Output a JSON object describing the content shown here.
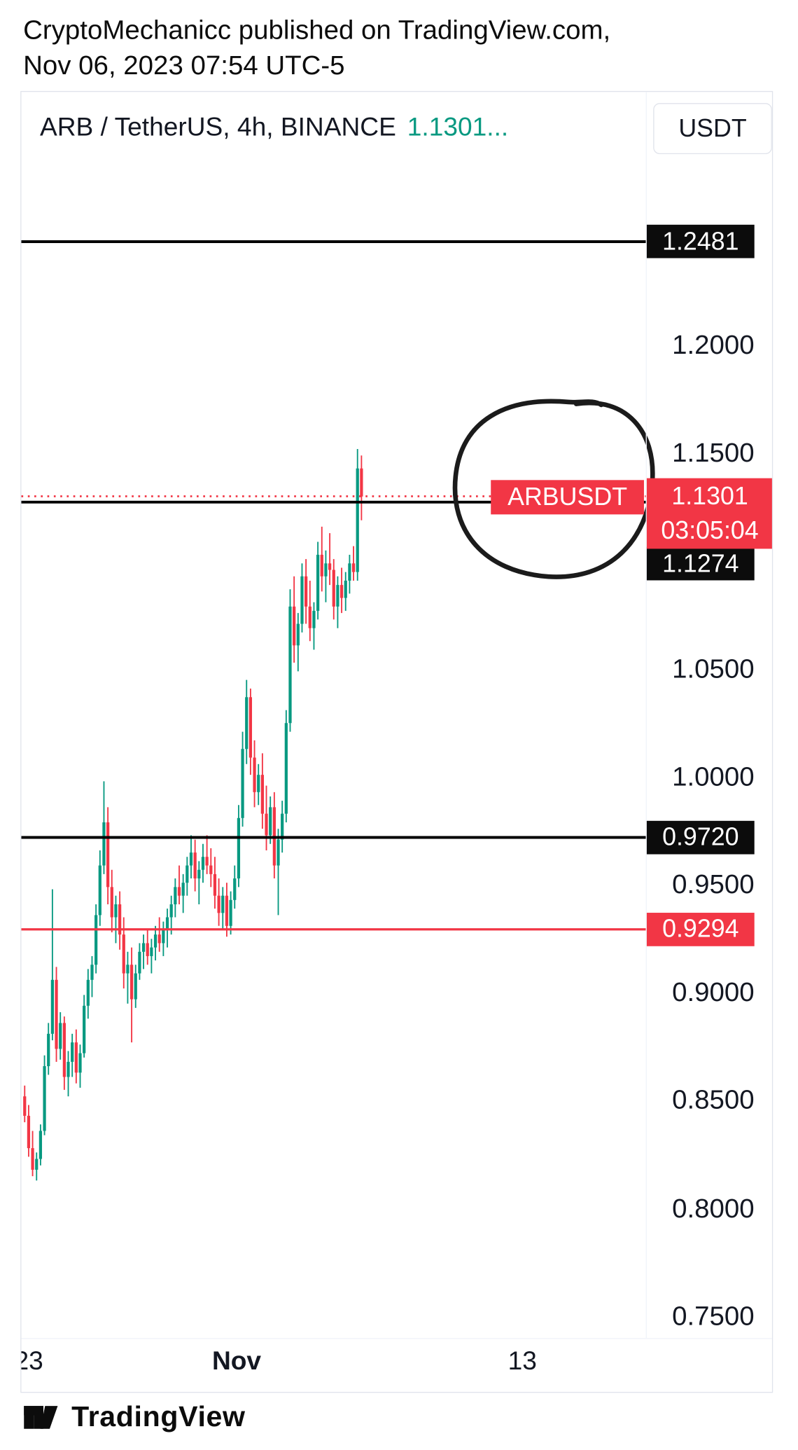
{
  "attribution": {
    "line1": "CryptoMechanicc published on TradingView.com,",
    "line2": "Nov 06, 2023 07:54 UTC-5"
  },
  "chart_header": {
    "symbol_title": "ARB / TetherUS, 4h, BINANCE",
    "price_preview": "1.1301...",
    "currency_button": "USDT"
  },
  "price_scale": {
    "labels": [
      {
        "text": "1.2000",
        "price": 1.2
      },
      {
        "text": "1.1500",
        "price": 1.15
      },
      {
        "text": "1.0500",
        "price": 1.05
      },
      {
        "text": "1.0000",
        "price": 1.0
      },
      {
        "text": "0.9500",
        "price": 0.95
      },
      {
        "text": "0.9000",
        "price": 0.9
      },
      {
        "text": "0.8500",
        "price": 0.85
      },
      {
        "text": "0.8000",
        "price": 0.8
      },
      {
        "text": "0.7500",
        "price": 0.75
      }
    ],
    "badges": [
      {
        "text": "1.2481",
        "price": 1.2481,
        "type": "black"
      },
      {
        "text": "1.1274",
        "price": 1.1274,
        "type": "black"
      },
      {
        "text": "0.9720",
        "price": 0.972,
        "type": "black"
      },
      {
        "text": "0.9294",
        "price": 0.9294,
        "type": "red"
      }
    ],
    "current": {
      "symbol_label": "ARBUSDT",
      "price": "1.1301",
      "countdown": "03:05:04"
    }
  },
  "time_axis": {
    "labels": [
      {
        "text": "23",
        "x": 8,
        "bold": false
      },
      {
        "text": "Nov",
        "x": 232,
        "bold": true
      },
      {
        "text": "13",
        "x": 540,
        "bold": false
      }
    ]
  },
  "footer": {
    "brand": "TradingView"
  },
  "colors": {
    "up": "#089981",
    "down": "#f23645",
    "badge_black": "#0c0c0c",
    "badge_red": "#f23645",
    "annotation": "#1b1b1b",
    "text": "#131722"
  },
  "annotations": [
    {
      "shape": "hand-drawn-circle",
      "around": "current-price-area",
      "color": "#1b1b1b"
    }
  ],
  "chart_data": {
    "type": "candlestick",
    "symbol": "ARBUSDT",
    "exchange": "BINANCE",
    "interval": "4h",
    "title": "ARB / TetherUS, 4h, BINANCE",
    "current_price": 1.1301,
    "visible_price_range": [
      0.74,
      1.3175
    ],
    "ylim": [
      0.74,
      1.3175
    ],
    "horizontal_lines": [
      {
        "price": 1.2481,
        "color": "black"
      },
      {
        "price": 1.1274,
        "color": "black"
      },
      {
        "price": 0.972,
        "color": "black"
      },
      {
        "price": 0.9294,
        "color": "red"
      }
    ],
    "x_tick_labels": [
      "23",
      "Nov",
      "13"
    ],
    "candles": [
      [
        0.852,
        0.857,
        0.84,
        0.843
      ],
      [
        0.843,
        0.848,
        0.824,
        0.828
      ],
      [
        0.828,
        0.836,
        0.815,
        0.818
      ],
      [
        0.818,
        0.826,
        0.813,
        0.823
      ],
      [
        0.823,
        0.839,
        0.82,
        0.836
      ],
      [
        0.836,
        0.871,
        0.834,
        0.866
      ],
      [
        0.866,
        0.886,
        0.862,
        0.881
      ],
      [
        0.881,
        0.948,
        0.878,
        0.906
      ],
      [
        0.906,
        0.912,
        0.868,
        0.874
      ],
      [
        0.874,
        0.891,
        0.869,
        0.886
      ],
      [
        0.886,
        0.889,
        0.855,
        0.861
      ],
      [
        0.861,
        0.873,
        0.852,
        0.868
      ],
      [
        0.868,
        0.881,
        0.861,
        0.877
      ],
      [
        0.877,
        0.883,
        0.858,
        0.863
      ],
      [
        0.863,
        0.876,
        0.856,
        0.872
      ],
      [
        0.872,
        0.899,
        0.87,
        0.894
      ],
      [
        0.894,
        0.911,
        0.888,
        0.906
      ],
      [
        0.906,
        0.917,
        0.898,
        0.913
      ],
      [
        0.913,
        0.941,
        0.909,
        0.936
      ],
      [
        0.936,
        0.966,
        0.931,
        0.959
      ],
      [
        0.959,
        0.998,
        0.955,
        0.979
      ],
      [
        0.979,
        0.986,
        0.941,
        0.949
      ],
      [
        0.949,
        0.957,
        0.928,
        0.935
      ],
      [
        0.935,
        0.945,
        0.923,
        0.941
      ],
      [
        0.941,
        0.947,
        0.92,
        0.927
      ],
      [
        0.927,
        0.935,
        0.902,
        0.909
      ],
      [
        0.909,
        0.919,
        0.895,
        0.913
      ],
      [
        0.913,
        0.921,
        0.877,
        0.897
      ],
      [
        0.897,
        0.913,
        0.893,
        0.909
      ],
      [
        0.909,
        0.923,
        0.906,
        0.919
      ],
      [
        0.919,
        0.927,
        0.911,
        0.923
      ],
      [
        0.923,
        0.929,
        0.913,
        0.917
      ],
      [
        0.917,
        0.925,
        0.909,
        0.921
      ],
      [
        0.921,
        0.931,
        0.915,
        0.927
      ],
      [
        0.927,
        0.935,
        0.919,
        0.923
      ],
      [
        0.923,
        0.933,
        0.917,
        0.929
      ],
      [
        0.929,
        0.939,
        0.921,
        0.935
      ],
      [
        0.935,
        0.945,
        0.927,
        0.941
      ],
      [
        0.941,
        0.953,
        0.935,
        0.949
      ],
      [
        0.949,
        0.959,
        0.941,
        0.945
      ],
      [
        0.945,
        0.955,
        0.937,
        0.951
      ],
      [
        0.951,
        0.963,
        0.945,
        0.959
      ],
      [
        0.959,
        0.973,
        0.953,
        0.965
      ],
      [
        0.965,
        0.971,
        0.947,
        0.953
      ],
      [
        0.953,
        0.961,
        0.941,
        0.957
      ],
      [
        0.957,
        0.969,
        0.951,
        0.963
      ],
      [
        0.963,
        0.973,
        0.955,
        0.959
      ],
      [
        0.959,
        0.967,
        0.949,
        0.955
      ],
      [
        0.955,
        0.963,
        0.939,
        0.945
      ],
      [
        0.945,
        0.953,
        0.931,
        0.937
      ],
      [
        0.937,
        0.949,
        0.929,
        0.945
      ],
      [
        0.945,
        0.951,
        0.926,
        0.931
      ],
      [
        0.931,
        0.947,
        0.927,
        0.943
      ],
      [
        0.943,
        0.959,
        0.939,
        0.953
      ],
      [
        0.953,
        0.987,
        0.949,
        0.981
      ],
      [
        0.981,
        1.021,
        0.977,
        1.013
      ],
      [
        1.013,
        1.045,
        1.006,
        1.037
      ],
      [
        1.037,
        1.041,
        1.001,
        1.009
      ],
      [
        1.009,
        1.017,
        0.986,
        0.993
      ],
      [
        0.993,
        1.006,
        0.987,
        1.001
      ],
      [
        1.001,
        1.011,
        0.976,
        0.983
      ],
      [
        0.983,
        0.996,
        0.966,
        0.973
      ],
      [
        0.973,
        0.991,
        0.969,
        0.986
      ],
      [
        0.986,
        0.993,
        0.953,
        0.959
      ],
      [
        0.959,
        0.976,
        0.936,
        0.971
      ],
      [
        0.971,
        0.989,
        0.965,
        0.983
      ],
      [
        0.983,
        1.031,
        0.979,
        1.025
      ],
      [
        1.025,
        1.087,
        1.021,
        1.079
      ],
      [
        1.079,
        1.093,
        1.053,
        1.061
      ],
      [
        1.061,
        1.076,
        1.049,
        1.071
      ],
      [
        1.071,
        1.099,
        1.067,
        1.093
      ],
      [
        1.093,
        1.101,
        1.071,
        1.079
      ],
      [
        1.079,
        1.091,
        1.063,
        1.069
      ],
      [
        1.069,
        1.081,
        1.059,
        1.077
      ],
      [
        1.077,
        1.109,
        1.073,
        1.103
      ],
      [
        1.103,
        1.116,
        1.086,
        1.093
      ],
      [
        1.093,
        1.105,
        1.081,
        1.099
      ],
      [
        1.099,
        1.113,
        1.089,
        1.096
      ],
      [
        1.096,
        1.101,
        1.073,
        1.079
      ],
      [
        1.079,
        1.093,
        1.069,
        1.089
      ],
      [
        1.089,
        1.097,
        1.076,
        1.083
      ],
      [
        1.083,
        1.095,
        1.077,
        1.091
      ],
      [
        1.091,
        1.103,
        1.085,
        1.099
      ],
      [
        1.099,
        1.107,
        1.091,
        1.095
      ],
      [
        1.095,
        1.152,
        1.091,
        1.143
      ],
      [
        1.143,
        1.149,
        1.119,
        1.13
      ]
    ]
  }
}
